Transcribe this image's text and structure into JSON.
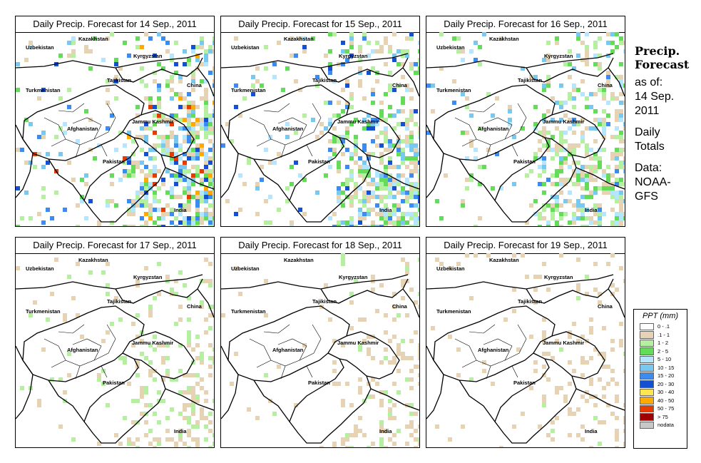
{
  "panels": [
    {
      "title": "Daily Precip. Forecast for  14 Sep., 2011",
      "intensity": 1.0
    },
    {
      "title": "Daily Precip. Forecast for  15 Sep., 2011",
      "intensity": 0.95
    },
    {
      "title": "Daily Precip. Forecast for  16 Sep., 2011",
      "intensity": 0.85
    },
    {
      "title": "Daily Precip. Forecast for  17 Sep., 2011",
      "intensity": 0.45
    },
    {
      "title": "Daily Precip. Forecast for  18 Sep., 2011",
      "intensity": 0.32
    },
    {
      "title": "Daily Precip. Forecast for  19 Sep., 2011",
      "intensity": 0.28
    }
  ],
  "map_labels": {
    "kazakhstan": "Kazakhstan",
    "uzbekistan": "Uzbekistan",
    "kyrgyzstan": "Kyrgyzstan",
    "tajikistan": "Tajikistan",
    "turkmenistan": "Turkmenistan",
    "china": "China",
    "afghanistan": "Afghanistan",
    "jammu_kashmir": "Jammu Kashmir",
    "pakistan": "Pakistan",
    "india": "India"
  },
  "side": {
    "title_line1": "Precip.",
    "title_line2": "Forecast",
    "asof_line1": "as of:",
    "asof_line2": "14 Sep.",
    "asof_line3": "2011",
    "totals_line1": "Daily",
    "totals_line2": "Totals",
    "data_line1": "Data:",
    "data_line2": "NOAA-",
    "data_line3": "GFS"
  },
  "legend": {
    "title": "PPT (mm)",
    "items": [
      {
        "label": "0 - .1",
        "color": "#ffffff"
      },
      {
        "label": ".1 - 1",
        "color": "#e6d3b3"
      },
      {
        "label": "1 - 2",
        "color": "#b4f0a0"
      },
      {
        "label": "2 - 5",
        "color": "#64dc5a"
      },
      {
        "label": "5 - 10",
        "color": "#b4e6ff"
      },
      {
        "label": "10 - 15",
        "color": "#78c8f0"
      },
      {
        "label": "15 - 20",
        "color": "#3c8cf0"
      },
      {
        "label": "20 - 30",
        "color": "#1450d2"
      },
      {
        "label": "30 - 40",
        "color": "#ffe650"
      },
      {
        "label": "40 - 50",
        "color": "#ffaa00"
      },
      {
        "label": "50 - 75",
        "color": "#e63c00"
      },
      {
        "label": "> 75",
        "color": "#a00000"
      },
      {
        "label": "nodata",
        "color": "#c8c8c8"
      }
    ]
  }
}
